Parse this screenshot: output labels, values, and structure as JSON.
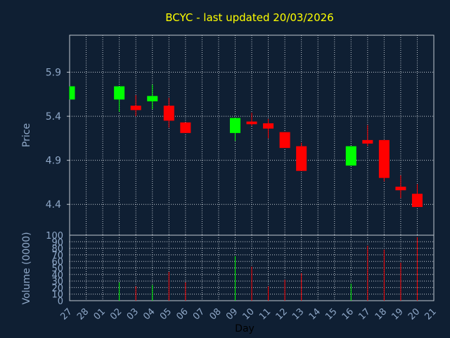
{
  "chart_data": {
    "type": "candlestick",
    "title": "BCYC - last updated 20/03/2026",
    "xlabel": "Day",
    "price_ylabel": "Price",
    "volume_ylabel": "Volume (0000)",
    "price_ticks": [
      "5.9",
      "5.4",
      "4.9",
      "4.4"
    ],
    "price_tick_values": [
      5.9,
      5.4,
      4.9,
      4.4
    ],
    "price_ylim": [
      4.05,
      6.32
    ],
    "volume_ticks": [
      "100",
      "90",
      "80",
      "70",
      "60",
      "50",
      "40",
      "30",
      "20",
      "10",
      "0"
    ],
    "volume_ylim": [
      0,
      100
    ],
    "grid": true,
    "day_labels": [
      "27",
      "28",
      "01",
      "02",
      "03",
      "04",
      "05",
      "06",
      "07",
      "08",
      "09",
      "10",
      "11",
      "12",
      "13",
      "14",
      "15",
      "16",
      "17",
      "18",
      "19",
      "20",
      "21"
    ],
    "candles": [
      {
        "day": "27",
        "open": 5.59,
        "close": 5.74,
        "high": 5.74,
        "low": 5.59
      },
      {
        "day": "02",
        "open": 5.59,
        "close": 5.74,
        "high": 5.74,
        "low": 5.45
      },
      {
        "day": "03",
        "open": 5.52,
        "close": 5.47,
        "high": 5.64,
        "low": 5.4
      },
      {
        "day": "04",
        "open": 5.57,
        "close": 5.63,
        "high": 5.76,
        "low": 5.48
      },
      {
        "day": "05",
        "open": 5.52,
        "close": 5.35,
        "high": 5.61,
        "low": 5.27
      },
      {
        "day": "06",
        "open": 5.33,
        "close": 5.21,
        "high": 5.33,
        "low": 5.21
      },
      {
        "day": "09",
        "open": 5.21,
        "close": 5.38,
        "high": 5.38,
        "low": 5.12
      },
      {
        "day": "10",
        "open": 5.34,
        "close": 5.31,
        "high": 5.44,
        "low": 5.29
      },
      {
        "day": "11",
        "open": 5.32,
        "close": 5.26,
        "high": 5.37,
        "low": 5.15
      },
      {
        "day": "12",
        "open": 5.22,
        "close": 5.04,
        "high": 5.22,
        "low": 5.04
      },
      {
        "day": "13",
        "open": 5.06,
        "close": 4.78,
        "high": 5.1,
        "low": 4.78
      },
      {
        "day": "16",
        "open": 4.84,
        "close": 5.06,
        "high": 5.06,
        "low": 4.84
      },
      {
        "day": "17",
        "open": 5.13,
        "close": 5.09,
        "high": 5.3,
        "low": 5.06
      },
      {
        "day": "18",
        "open": 5.13,
        "close": 4.7,
        "high": 5.13,
        "low": 4.66
      },
      {
        "day": "19",
        "open": 4.6,
        "close": 4.56,
        "high": 4.73,
        "low": 4.47
      },
      {
        "day": "20",
        "open": 4.52,
        "close": 4.37,
        "high": 4.63,
        "low": 4.37
      }
    ],
    "volume": [
      {
        "day": "02",
        "value": 28,
        "color": "#00ff00"
      },
      {
        "day": "03",
        "value": 22,
        "color": "#ff0000"
      },
      {
        "day": "04",
        "value": 24,
        "color": "#00ff00"
      },
      {
        "day": "05",
        "value": 44,
        "color": "#ff0000"
      },
      {
        "day": "06",
        "value": 28,
        "color": "#ff0000"
      },
      {
        "day": "09",
        "value": 68,
        "color": "#00ff00"
      },
      {
        "day": "10",
        "value": 52,
        "color": "#ff0000"
      },
      {
        "day": "11",
        "value": 22,
        "color": "#ff0000"
      },
      {
        "day": "12",
        "value": 32,
        "color": "#ff0000"
      },
      {
        "day": "13",
        "value": 42,
        "color": "#ff0000"
      },
      {
        "day": "16",
        "value": 26,
        "color": "#00ff00"
      },
      {
        "day": "17",
        "value": 84,
        "color": "#ff0000"
      },
      {
        "day": "18",
        "value": 78,
        "color": "#ff0000"
      },
      {
        "day": "19",
        "value": 58,
        "color": "#ff0000"
      },
      {
        "day": "20",
        "value": 97,
        "color": "#ff0000"
      }
    ],
    "colors": {
      "up": "#00ff00",
      "down": "#ff0000",
      "background": "#0f1f33",
      "text": "#8fa8c8",
      "title": "#ffff00",
      "grid": "#c0c8d0"
    }
  }
}
